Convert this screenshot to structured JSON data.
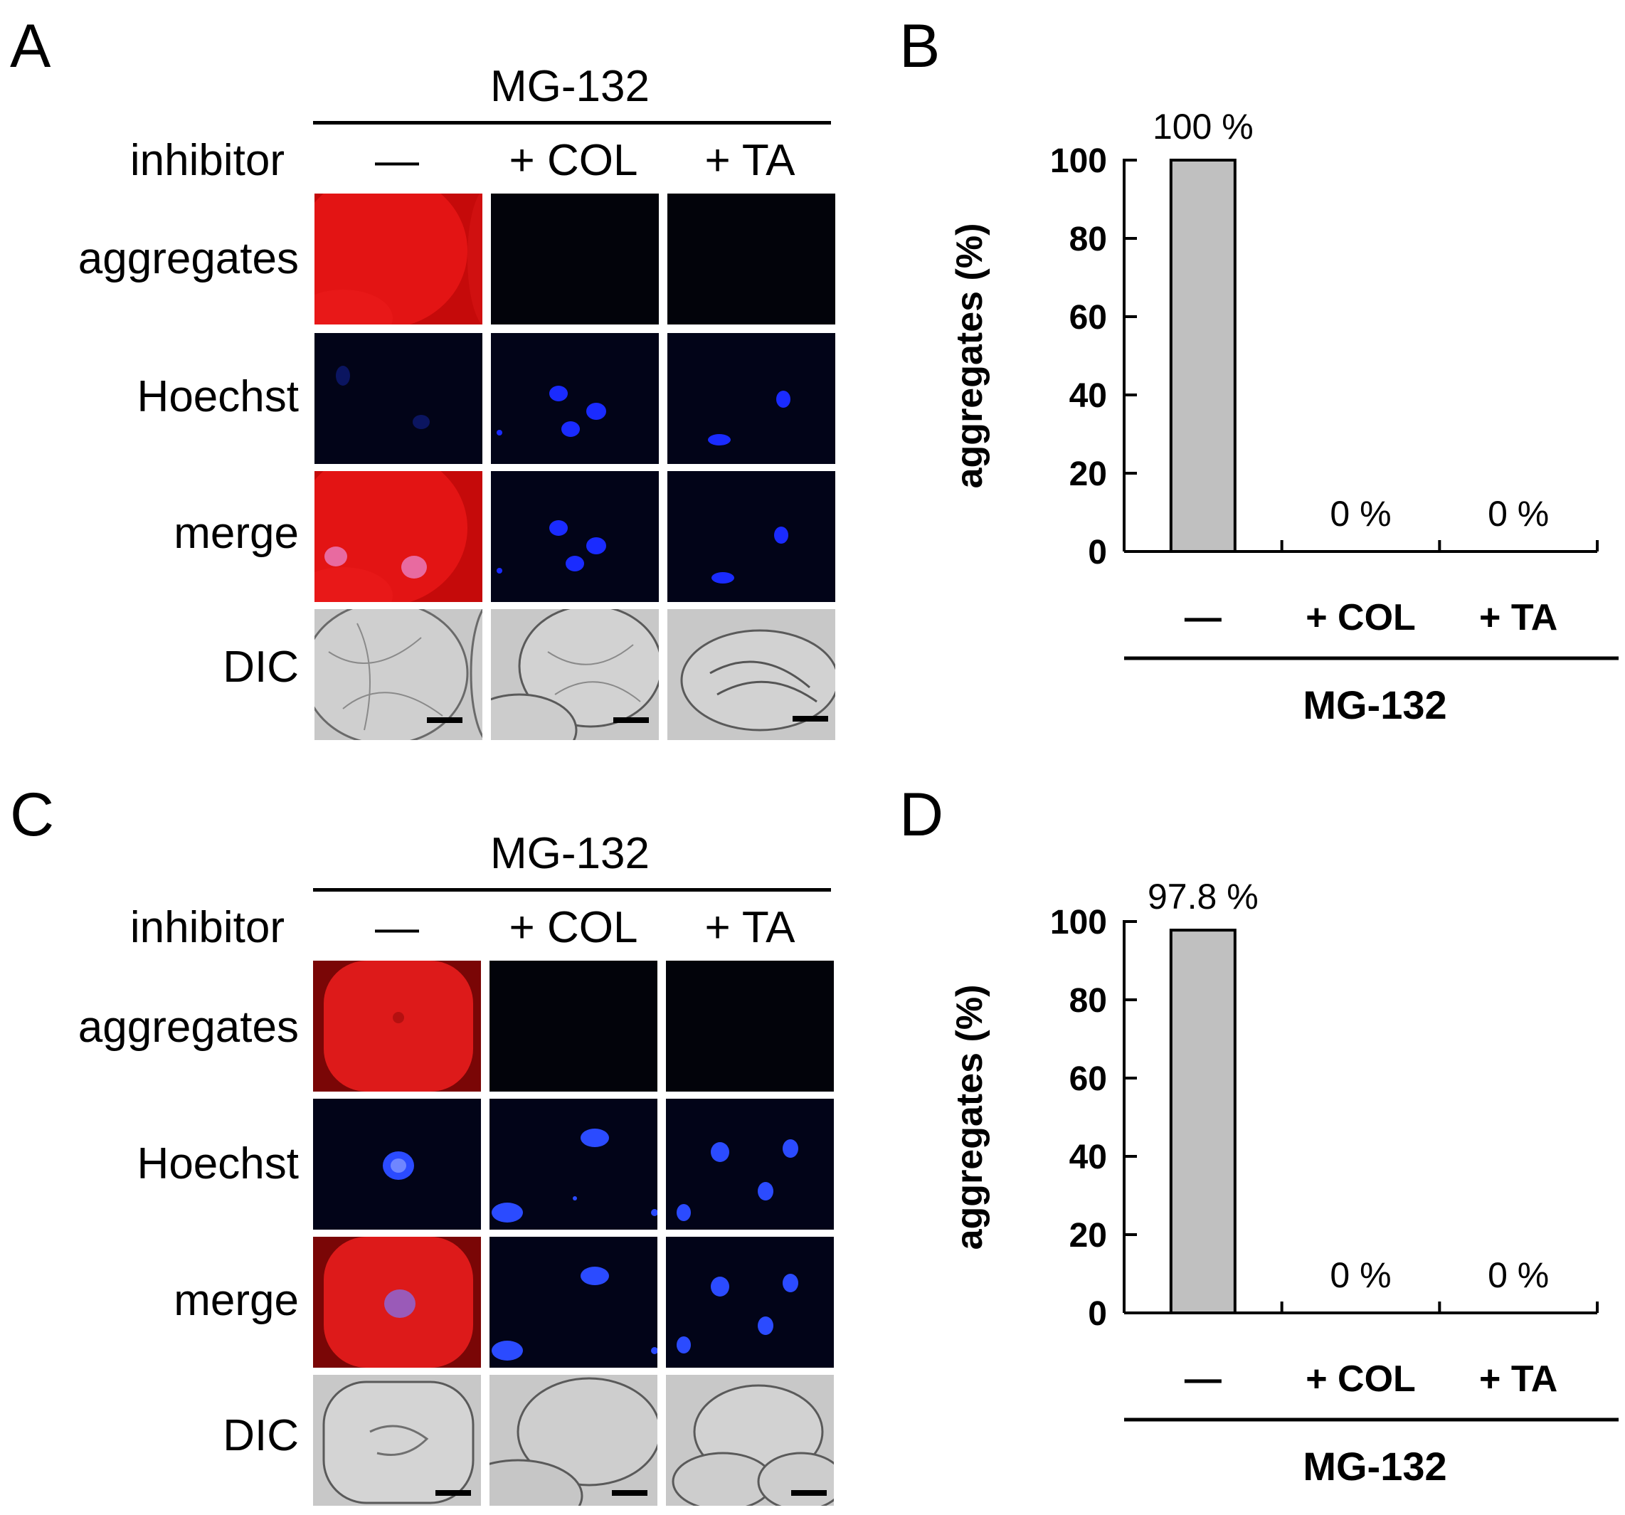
{
  "panels": {
    "A": "A",
    "B": "B",
    "C": "C",
    "D": "D"
  },
  "micrographs": [
    {
      "id": "A",
      "treatment_title": "MG-132",
      "column_header_label": "inhibitor",
      "columns": [
        "—",
        "+ COL",
        "+ TA"
      ],
      "rows": [
        "aggregates",
        "Hoechst",
        "merge",
        "DIC"
      ]
    },
    {
      "id": "C",
      "treatment_title": "MG-132",
      "column_header_label": "inhibitor",
      "columns": [
        "—",
        "+ COL",
        "+ TA"
      ],
      "rows": [
        "aggregates",
        "Hoechst",
        "merge",
        "DIC"
      ]
    }
  ],
  "colors": {
    "aggregates_red": "#e01010",
    "hoechst_blue": "#1a2bff",
    "bar_fill": "#c0c0c0",
    "dic_gray": "#c8c8c8",
    "dark_field": "#02040a"
  },
  "chart_data": [
    {
      "panel": "B",
      "type": "bar",
      "categories": [
        "—",
        "+ COL",
        "+ TA"
      ],
      "values": [
        100,
        0,
        0
      ],
      "data_labels": [
        "100 %",
        "0 %",
        "0 %"
      ],
      "ylabel": "aggregates (%)",
      "yticks": [
        "0",
        "20",
        "40",
        "60",
        "80",
        "100"
      ],
      "ylim": [
        0,
        100
      ],
      "group_label": "MG-132",
      "grid": false,
      "bar_color": "#c0c0c0"
    },
    {
      "panel": "D",
      "type": "bar",
      "categories": [
        "—",
        "+ COL",
        "+ TA"
      ],
      "values": [
        97.8,
        0,
        0
      ],
      "data_labels": [
        "97.8 %",
        "0 %",
        "0 %"
      ],
      "ylabel": "aggregates (%)",
      "yticks": [
        "0",
        "20",
        "40",
        "60",
        "80",
        "100"
      ],
      "ylim": [
        0,
        100
      ],
      "group_label": "MG-132",
      "grid": false,
      "bar_color": "#c0c0c0"
    }
  ]
}
